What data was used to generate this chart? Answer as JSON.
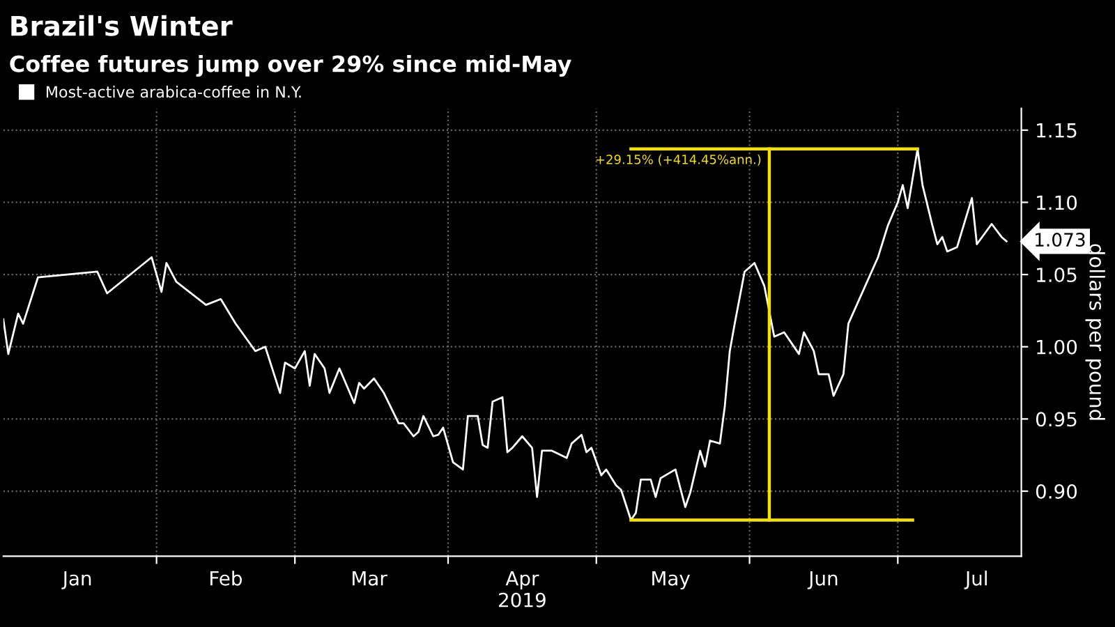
{
  "chart_data": {
    "type": "line",
    "title": "Brazil's Winter",
    "subtitle": "Coffee futures jump over 29% since mid-May",
    "ylabel": "dollars per pound",
    "xlim": [
      "2019-01-01",
      "2019-07-26"
    ],
    "ylim": [
      0.855,
      1.165
    ],
    "xticks": [
      {
        "value": "2019-02-01",
        "label": null
      },
      {
        "value": "2019-03-01",
        "label": null
      },
      {
        "value": "2019-04-01",
        "label": null
      },
      {
        "value": "2019-05-01",
        "label": null
      },
      {
        "value": "2019-06-01",
        "label": null
      },
      {
        "value": "2019-07-01",
        "label": null
      },
      {
        "value": "2019-01-16",
        "label": "Jan"
      },
      {
        "value": "2019-02-15",
        "label": "Feb"
      },
      {
        "value": "2019-03-16",
        "label": "Mar"
      },
      {
        "value": "2019-04-16",
        "label": "Apr\n2019"
      },
      {
        "value": "2019-05-16",
        "label": "May"
      },
      {
        "value": "2019-06-16",
        "label": "Jun"
      },
      {
        "value": "2019-07-17",
        "label": "Jul"
      }
    ],
    "yticks": [
      {
        "value": 0.9,
        "label": "0.90"
      },
      {
        "value": 0.95,
        "label": "0.95"
      },
      {
        "value": 1.0,
        "label": "1.00"
      },
      {
        "value": 1.05,
        "label": "1.05"
      },
      {
        "value": 1.1,
        "label": "1.10"
      },
      {
        "value": 1.15,
        "label": "1.15"
      }
    ],
    "grid": true,
    "legend": "top left",
    "marker": "none",
    "line_style": "solid",
    "series": [
      {
        "name": "Most-active arabica-coffee in N.Y.",
        "color": "#ffffff",
        "x": [
          "2019-01-01",
          "2019-01-02",
          "2019-01-04",
          "2019-01-05",
          "2019-01-08",
          "2019-01-20",
          "2019-01-22",
          "2019-01-31",
          "2019-02-02",
          "2019-02-03",
          "2019-02-05",
          "2019-02-11",
          "2019-02-14",
          "2019-02-17",
          "2019-02-21",
          "2019-02-23",
          "2019-02-26",
          "2019-02-27",
          "2019-03-01",
          "2019-03-03",
          "2019-03-04",
          "2019-03-05",
          "2019-03-07",
          "2019-03-08",
          "2019-03-10",
          "2019-03-13",
          "2019-03-14",
          "2019-03-15",
          "2019-03-17",
          "2019-03-19",
          "2019-03-22",
          "2019-03-23",
          "2019-03-25",
          "2019-03-26",
          "2019-03-27",
          "2019-03-29",
          "2019-03-30",
          "2019-03-31",
          "2019-04-02",
          "2019-04-04",
          "2019-04-05",
          "2019-04-07",
          "2019-04-08",
          "2019-04-09",
          "2019-04-10",
          "2019-04-12",
          "2019-04-13",
          "2019-04-14",
          "2019-04-16",
          "2019-04-18",
          "2019-04-19",
          "2019-04-20",
          "2019-04-22",
          "2019-04-25",
          "2019-04-26",
          "2019-04-28",
          "2019-04-29",
          "2019-04-30",
          "2019-05-02",
          "2019-05-03",
          "2019-05-05",
          "2019-05-06",
          "2019-05-08",
          "2019-05-09",
          "2019-05-10",
          "2019-05-12",
          "2019-05-13",
          "2019-05-14",
          "2019-05-17",
          "2019-05-19",
          "2019-05-20",
          "2019-05-22",
          "2019-05-23",
          "2019-05-24",
          "2019-05-26",
          "2019-05-27",
          "2019-05-28",
          "2019-05-29",
          "2019-05-31",
          "2019-06-02",
          "2019-06-04",
          "2019-06-06",
          "2019-06-08",
          "2019-06-11",
          "2019-06-12",
          "2019-06-14",
          "2019-06-15",
          "2019-06-17",
          "2019-06-18",
          "2019-06-20",
          "2019-06-21",
          "2019-06-27",
          "2019-06-29",
          "2019-07-01",
          "2019-07-02",
          "2019-07-03",
          "2019-07-05",
          "2019-07-06",
          "2019-07-08",
          "2019-07-09",
          "2019-07-10",
          "2019-07-11",
          "2019-07-13",
          "2019-07-16",
          "2019-07-17",
          "2019-07-20",
          "2019-07-22",
          "2019-07-23"
        ],
        "values": [
          1.019,
          0.995,
          1.023,
          1.016,
          1.048,
          1.052,
          1.037,
          1.062,
          1.038,
          1.058,
          1.045,
          1.029,
          1.033,
          1.016,
          0.997,
          1.0,
          0.968,
          0.989,
          0.985,
          0.997,
          0.973,
          0.995,
          0.985,
          0.968,
          0.985,
          0.961,
          0.975,
          0.971,
          0.978,
          0.968,
          0.947,
          0.947,
          0.938,
          0.941,
          0.952,
          0.938,
          0.939,
          0.944,
          0.92,
          0.915,
          0.952,
          0.952,
          0.932,
          0.93,
          0.962,
          0.965,
          0.927,
          0.93,
          0.938,
          0.93,
          0.896,
          0.928,
          0.928,
          0.923,
          0.933,
          0.939,
          0.927,
          0.93,
          0.911,
          0.915,
          0.904,
          0.901,
          0.88,
          0.885,
          0.908,
          0.908,
          0.896,
          0.909,
          0.915,
          0.889,
          0.899,
          0.928,
          0.917,
          0.935,
          0.933,
          0.959,
          0.997,
          1.016,
          1.052,
          1.058,
          1.042,
          1.007,
          1.01,
          0.995,
          1.01,
          0.997,
          0.981,
          0.981,
          0.966,
          0.981,
          1.016,
          1.062,
          1.084,
          1.1,
          1.112,
          1.096,
          1.137,
          1.112,
          1.084,
          1.071,
          1.076,
          1.066,
          1.069,
          1.103,
          1.071,
          1.085,
          1.076,
          1.073
        ]
      },
      {
        "color": "#f5e100",
        "x": [
          "2019-05-08",
          "2019-07-04"
        ],
        "values": [
          0.88,
          0.88
        ]
      },
      {
        "color": "#f5e100",
        "x": [
          "2019-05-08",
          "2019-07-05"
        ],
        "values": [
          1.137,
          1.137
        ]
      },
      {
        "color": "#f5e100",
        "x": [
          "2019-06-05",
          "2019-06-05"
        ],
        "values": [
          0.88,
          1.137
        ]
      }
    ],
    "annotations": [
      "+29.15% (+414.45%ann.)",
      {
        "text": "1.073",
        "x": "2019-07-23",
        "y": 1.073
      }
    ]
  }
}
